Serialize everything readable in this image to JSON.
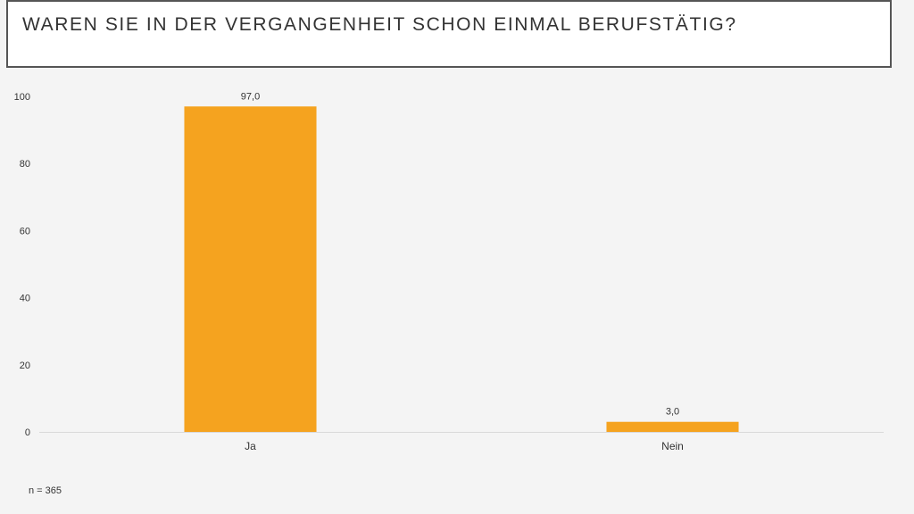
{
  "slide": {
    "title": "WAREN SIE IN DER VERGANGENHEIT SCHON EINMAL BERUFSTÄTIG?",
    "note": "n = 365"
  },
  "chart_data": {
    "type": "bar",
    "categories": [
      "Ja",
      "Nein"
    ],
    "values": [
      97.0,
      3.0
    ],
    "value_labels": [
      "97,0",
      "3,0"
    ],
    "ylim": [
      0,
      100
    ],
    "yticks": [
      0,
      20,
      40,
      60,
      80,
      100
    ],
    "grid": false,
    "legend": "none",
    "bar_color": "#f5a31f",
    "axis_color": "#d9d9d9"
  }
}
